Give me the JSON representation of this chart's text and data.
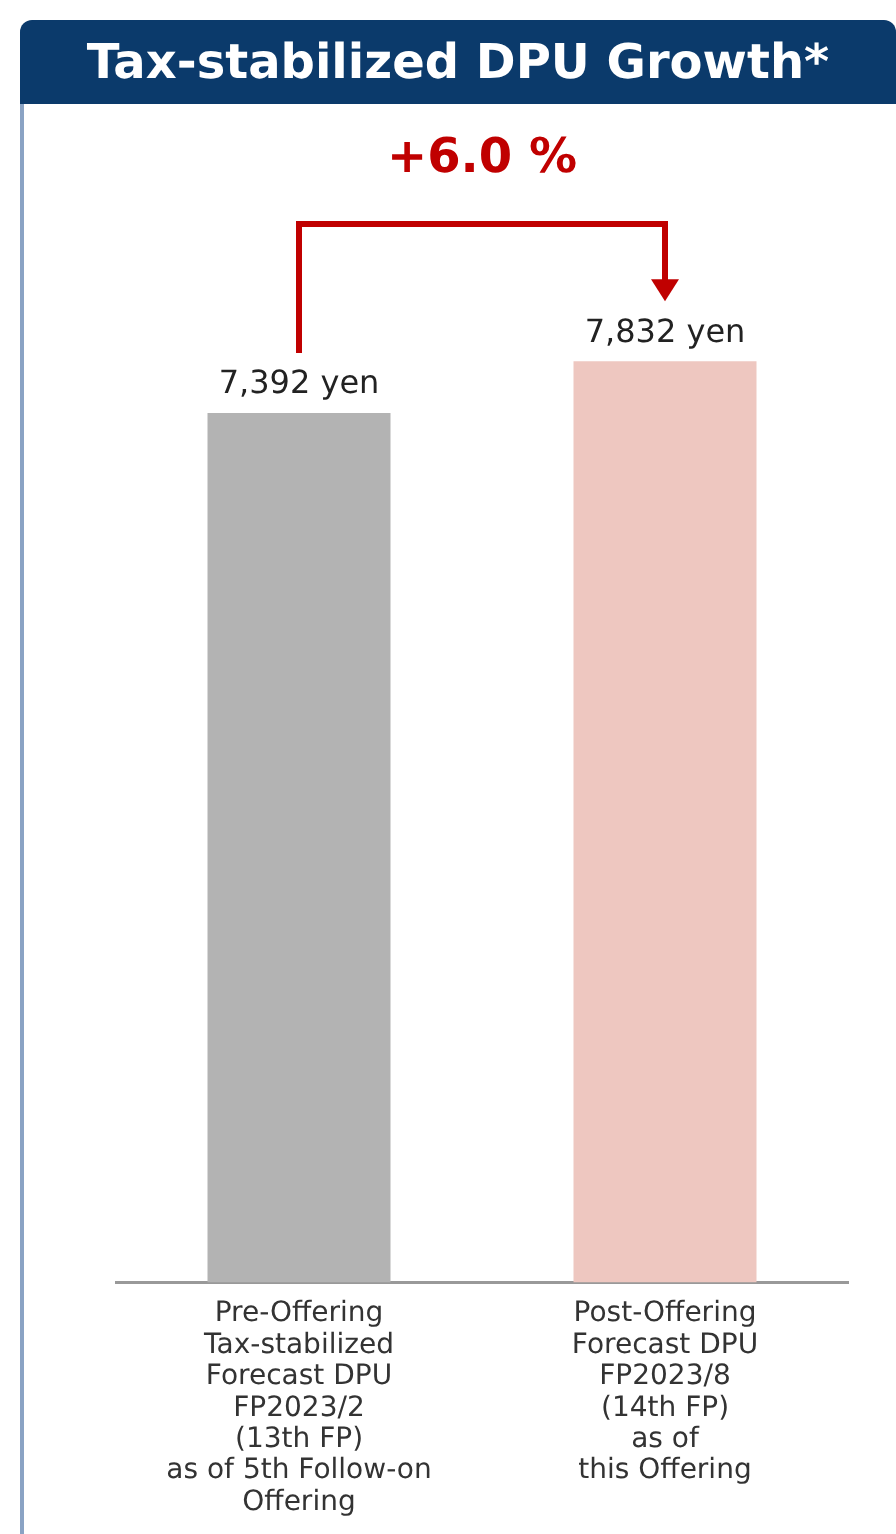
{
  "chart_data": {
    "type": "bar",
    "title": "Tax-stabilized DPU Growth*",
    "categories": [
      "Pre-Offering\nTax-stabilized\nForecast DPU\nFP2023/2\n(13th FP)\nas of 5th Follow-on\nOffering",
      "Post-Offering\nForecast DPU\nFP2023/8\n(14th FP)\nas of\nthis Offering"
    ],
    "values": [
      7392,
      7832
    ],
    "colors": [
      "#b3b3b3",
      "#eec7c0"
    ],
    "value_labels": [
      "7,392 yen",
      "7,832 yen"
    ],
    "annotations": [
      "+6.0 %"
    ],
    "grid": false,
    "legend": false
  }
}
